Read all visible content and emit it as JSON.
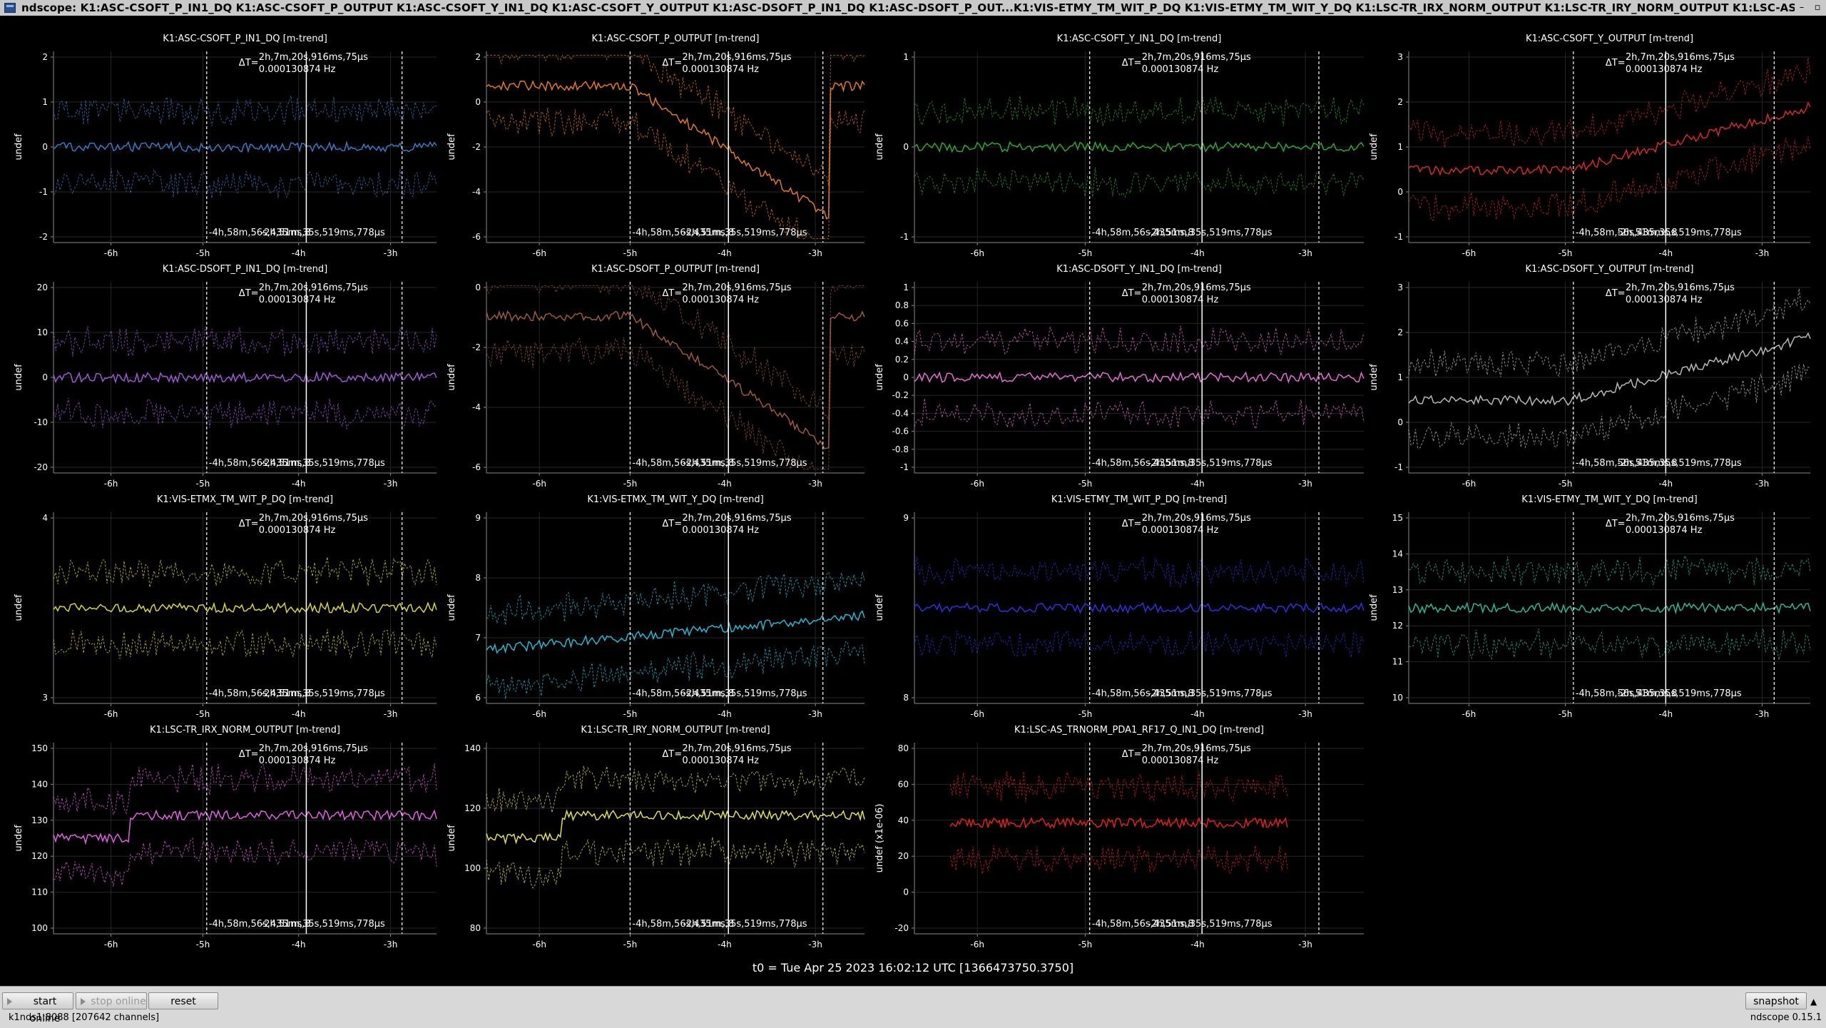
{
  "window": {
    "title": "ndscope: K1:ASC-CSOFT_P_IN1_DQ K1:ASC-CSOFT_P_OUTPUT K1:ASC-CSOFT_Y_IN1_DQ K1:ASC-CSOFT_Y_OUTPUT K1:ASC-DSOFT_P_IN1_DQ K1:ASC-DSOFT_P_OUT...K1:VIS-ETMY_TM_WIT_P_DQ K1:VIS-ETMY_TM_WIT_Y_DQ K1:LSC-TR_IRX_NORM_OUTPUT K1:LSC-TR_IRY_NORM_OUTPUT K1:LSC-AS_TRNORM_PDA1_RF17_Q_IN1_DQ",
    "minimize_glyph": "–",
    "maximize_glyph": "▫"
  },
  "cursor": {
    "delta_label": "ΔT=",
    "delta_value": "2h,7m,20s,916ms,75µs",
    "freq_value": "0.000130874 Hz",
    "t1_label": "-4h,58m,56s,435ms,8",
    "t2_label": "-2h,51m,35s,519ms,778µs"
  },
  "xticks": [
    "-6h",
    "-5h",
    "-4h",
    "-3h"
  ],
  "panels": [
    {
      "title": "K1:ASC-CSOFT_P_IN1_DQ [m-trend]",
      "ylabel": "undef",
      "color": "#3a78c0",
      "yticks": [
        "2",
        "1",
        "0",
        "-1",
        "-2"
      ]
    },
    {
      "title": "K1:ASC-CSOFT_P_OUTPUT [m-trend]",
      "ylabel": "undef",
      "color": "#e07a1c",
      "yticks": [
        "2",
        "0",
        "-2",
        "-4",
        "-6"
      ]
    },
    {
      "title": "K1:ASC-CSOFT_Y_IN1_DQ [m-trend]",
      "ylabel": "undef",
      "color": "#2ea52e",
      "yticks": [
        "1",
        "0",
        "-1"
      ]
    },
    {
      "title": "K1:ASC-CSOFT_Y_OUTPUT [m-trend]",
      "ylabel": "undef",
      "color": "#d42a2a",
      "yticks": [
        "3",
        "2",
        "1",
        "0",
        "-1"
      ]
    },
    {
      "title": "K1:ASC-DSOFT_P_IN1_DQ [m-trend]",
      "ylabel": "undef",
      "color": "#9a5ad0",
      "yticks": [
        "20",
        "10",
        "0",
        "-10",
        "-20"
      ]
    },
    {
      "title": "K1:ASC-DSOFT_P_OUTPUT [m-trend]",
      "ylabel": "undef",
      "color": "#9a5a3a",
      "yticks": [
        "0",
        "-2",
        "-4",
        "-6"
      ]
    },
    {
      "title": "K1:ASC-DSOFT_Y_IN1_DQ [m-trend]",
      "ylabel": "undef",
      "color": "#e070d0",
      "yticks": [
        "1",
        "0.8",
        "0.6",
        "0.4",
        "0.2",
        "0",
        "-0.2",
        "-0.4",
        "-0.6",
        "-0.8",
        "-1"
      ]
    },
    {
      "title": "K1:ASC-DSOFT_Y_OUTPUT [m-trend]",
      "ylabel": "undef",
      "color": "#b8b8b8",
      "yticks": [
        "3",
        "2",
        "1",
        "0",
        "-1"
      ]
    },
    {
      "title": "K1:VIS-ETMX_TM_WIT_P_DQ [m-trend]",
      "ylabel": "undef",
      "color": "#d8d828",
      "yticks": [
        "4",
        "3"
      ]
    },
    {
      "title": "K1:VIS-ETMX_TM_WIT_Y_DQ [m-trend]",
      "ylabel": "undef",
      "color": "#22b8d0",
      "yticks": [
        "9",
        "8",
        "7",
        "6"
      ]
    },
    {
      "title": "K1:VIS-ETMY_TM_WIT_P_DQ [m-trend]",
      "ylabel": "undef",
      "color": "#3030e0",
      "yticks": [
        "9",
        "8"
      ]
    },
    {
      "title": "K1:VIS-ETMY_TM_WIT_Y_DQ [m-trend]",
      "ylabel": "undef",
      "color": "#28b898",
      "yticks": [
        "15",
        "14",
        "13",
        "12",
        "11",
        "10"
      ]
    },
    {
      "title": "K1:LSC-TR_IRX_NORM_OUTPUT [m-trend]",
      "ylabel": "undef",
      "color": "#e060e0",
      "yticks": [
        "150",
        "140",
        "130",
        "120",
        "110",
        "100"
      ]
    },
    {
      "title": "K1:LSC-TR_IRY_NORM_OUTPUT [m-trend]",
      "ylabel": "undef",
      "color": "#e0e050",
      "yticks": [
        "140",
        "120",
        "100",
        "80"
      ]
    },
    {
      "title": "K1:LSC-AS_TRNORM_PDA1_RF17_Q_IN1_DQ [m-trend]",
      "ylabel": "undef (x1e-06)",
      "color": "#e02020",
      "yticks": [
        "80",
        "60",
        "40",
        "20",
        "0",
        "-20"
      ]
    }
  ],
  "t0": "t0 = Tue Apr 25 2023 16:02:12 UTC [1366473750.3750]",
  "buttons": {
    "start_online": "start online",
    "stop_online": "stop online",
    "reset": "reset",
    "snapshot": "snapshot"
  },
  "status": {
    "server": "k1nds1:8088  [207642 channels]",
    "version": "ndscope 0.15.1"
  }
}
